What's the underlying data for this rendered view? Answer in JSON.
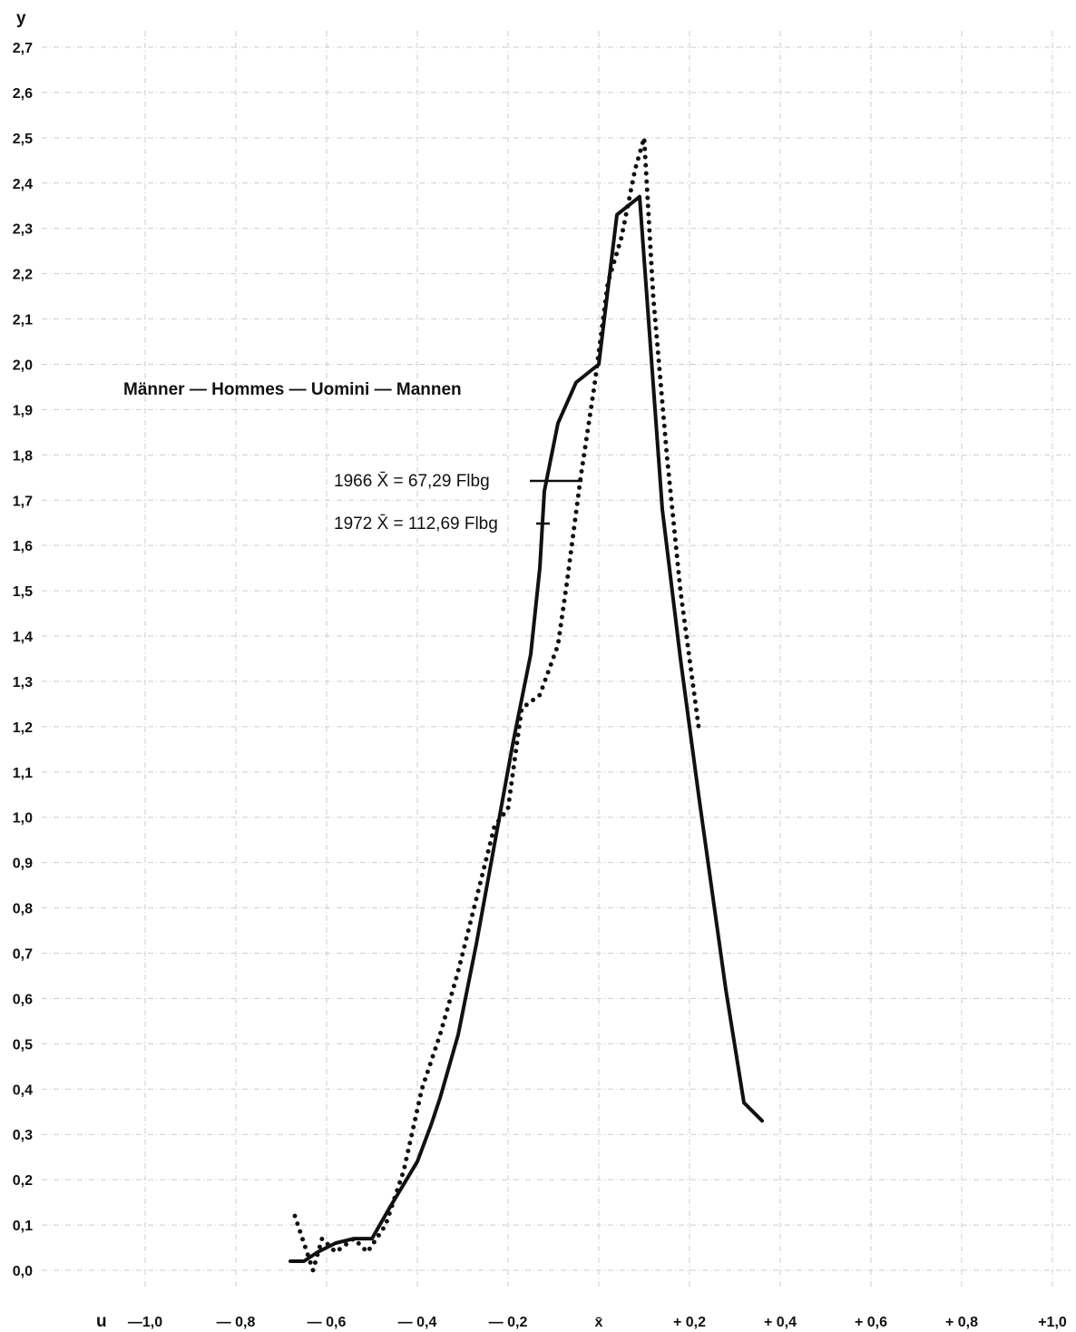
{
  "chart_data": {
    "type": "line",
    "title": "Männer — Hommes — Uomini — Mannen",
    "ylabel": "y",
    "xlabel": "u",
    "xlim": [
      -1.0,
      1.0
    ],
    "ylim": [
      0.0,
      2.7
    ],
    "grid": true,
    "x_ticks": [
      {
        "value": -1.0,
        "label": "—1,0"
      },
      {
        "value": -0.8,
        "label": "— 0,8"
      },
      {
        "value": -0.6,
        "label": "— 0,6"
      },
      {
        "value": -0.4,
        "label": "— 0,4"
      },
      {
        "value": -0.2,
        "label": "— 0,2"
      },
      {
        "value": 0.0,
        "label": "x̄"
      },
      {
        "value": 0.2,
        "label": "+ 0,2"
      },
      {
        "value": 0.4,
        "label": "+ 0,4"
      },
      {
        "value": 0.6,
        "label": "+ 0,6"
      },
      {
        "value": 0.8,
        "label": "+ 0,8"
      },
      {
        "value": 1.0,
        "label": "+1,0"
      }
    ],
    "y_ticks": [
      {
        "value": 0.0,
        "label": "0,0"
      },
      {
        "value": 0.1,
        "label": "0,1"
      },
      {
        "value": 0.2,
        "label": "0,2"
      },
      {
        "value": 0.3,
        "label": "0,3"
      },
      {
        "value": 0.4,
        "label": "0,4"
      },
      {
        "value": 0.5,
        "label": "0,5"
      },
      {
        "value": 0.6,
        "label": "0,6"
      },
      {
        "value": 0.7,
        "label": "0,7"
      },
      {
        "value": 0.8,
        "label": "0,8"
      },
      {
        "value": 0.9,
        "label": "0,9"
      },
      {
        "value": 1.0,
        "label": "1,0"
      },
      {
        "value": 1.1,
        "label": "1,1"
      },
      {
        "value": 1.2,
        "label": "1,2"
      },
      {
        "value": 1.3,
        "label": "1,3"
      },
      {
        "value": 1.4,
        "label": "1,4"
      },
      {
        "value": 1.5,
        "label": "1,5"
      },
      {
        "value": 1.6,
        "label": "1,6"
      },
      {
        "value": 1.7,
        "label": "1,7"
      },
      {
        "value": 1.8,
        "label": "1,8"
      },
      {
        "value": 1.9,
        "label": "1,9"
      },
      {
        "value": 2.0,
        "label": "2,0"
      },
      {
        "value": 2.1,
        "label": "2,1"
      },
      {
        "value": 2.2,
        "label": "2,2"
      },
      {
        "value": 2.3,
        "label": "2,3"
      },
      {
        "value": 2.4,
        "label": "2,4"
      },
      {
        "value": 2.5,
        "label": "2,5"
      },
      {
        "value": 2.6,
        "label": "2,6"
      },
      {
        "value": 2.7,
        "label": "2,7"
      }
    ],
    "series": [
      {
        "name": "1966 X̄ = 67,29 Flbg",
        "style": "solid",
        "x": [
          -0.68,
          -0.67,
          -0.65,
          -0.62,
          -0.6,
          -0.58,
          -0.54,
          -0.5,
          -0.46,
          -0.4,
          -0.37,
          -0.35,
          -0.31,
          -0.27,
          -0.23,
          -0.19,
          -0.15,
          -0.13,
          -0.12,
          -0.09,
          -0.05,
          0.0,
          0.04,
          0.09,
          0.14,
          0.18,
          0.22,
          0.28,
          0.32,
          0.36
        ],
        "y": [
          0.02,
          0.02,
          0.02,
          0.04,
          0.05,
          0.06,
          0.07,
          0.07,
          0.14,
          0.24,
          0.32,
          0.38,
          0.52,
          0.72,
          0.94,
          1.16,
          1.36,
          1.55,
          1.72,
          1.87,
          1.96,
          2.0,
          2.33,
          2.37,
          1.68,
          1.35,
          1.05,
          0.62,
          0.37,
          0.33
        ]
      },
      {
        "name": "1972 X̄ = 112,69 Flbg",
        "style": "dotted",
        "x": [
          -0.67,
          -0.65,
          -0.63,
          -0.61,
          -0.58,
          -0.54,
          -0.51,
          -0.47,
          -0.43,
          -0.39,
          -0.35,
          -0.31,
          -0.27,
          -0.23,
          -0.2,
          -0.17,
          -0.13,
          -0.09,
          -0.07,
          -0.04,
          -0.01,
          0.02,
          0.05,
          0.08,
          0.1,
          0.12,
          0.15,
          0.18,
          0.22
        ],
        "y": [
          0.12,
          0.06,
          0.0,
          0.07,
          0.04,
          0.07,
          0.04,
          0.1,
          0.22,
          0.4,
          0.52,
          0.66,
          0.82,
          0.98,
          1.02,
          1.24,
          1.27,
          1.38,
          1.52,
          1.75,
          1.95,
          2.18,
          2.28,
          2.43,
          2.5,
          2.15,
          1.8,
          1.5,
          1.2
        ]
      }
    ]
  }
}
